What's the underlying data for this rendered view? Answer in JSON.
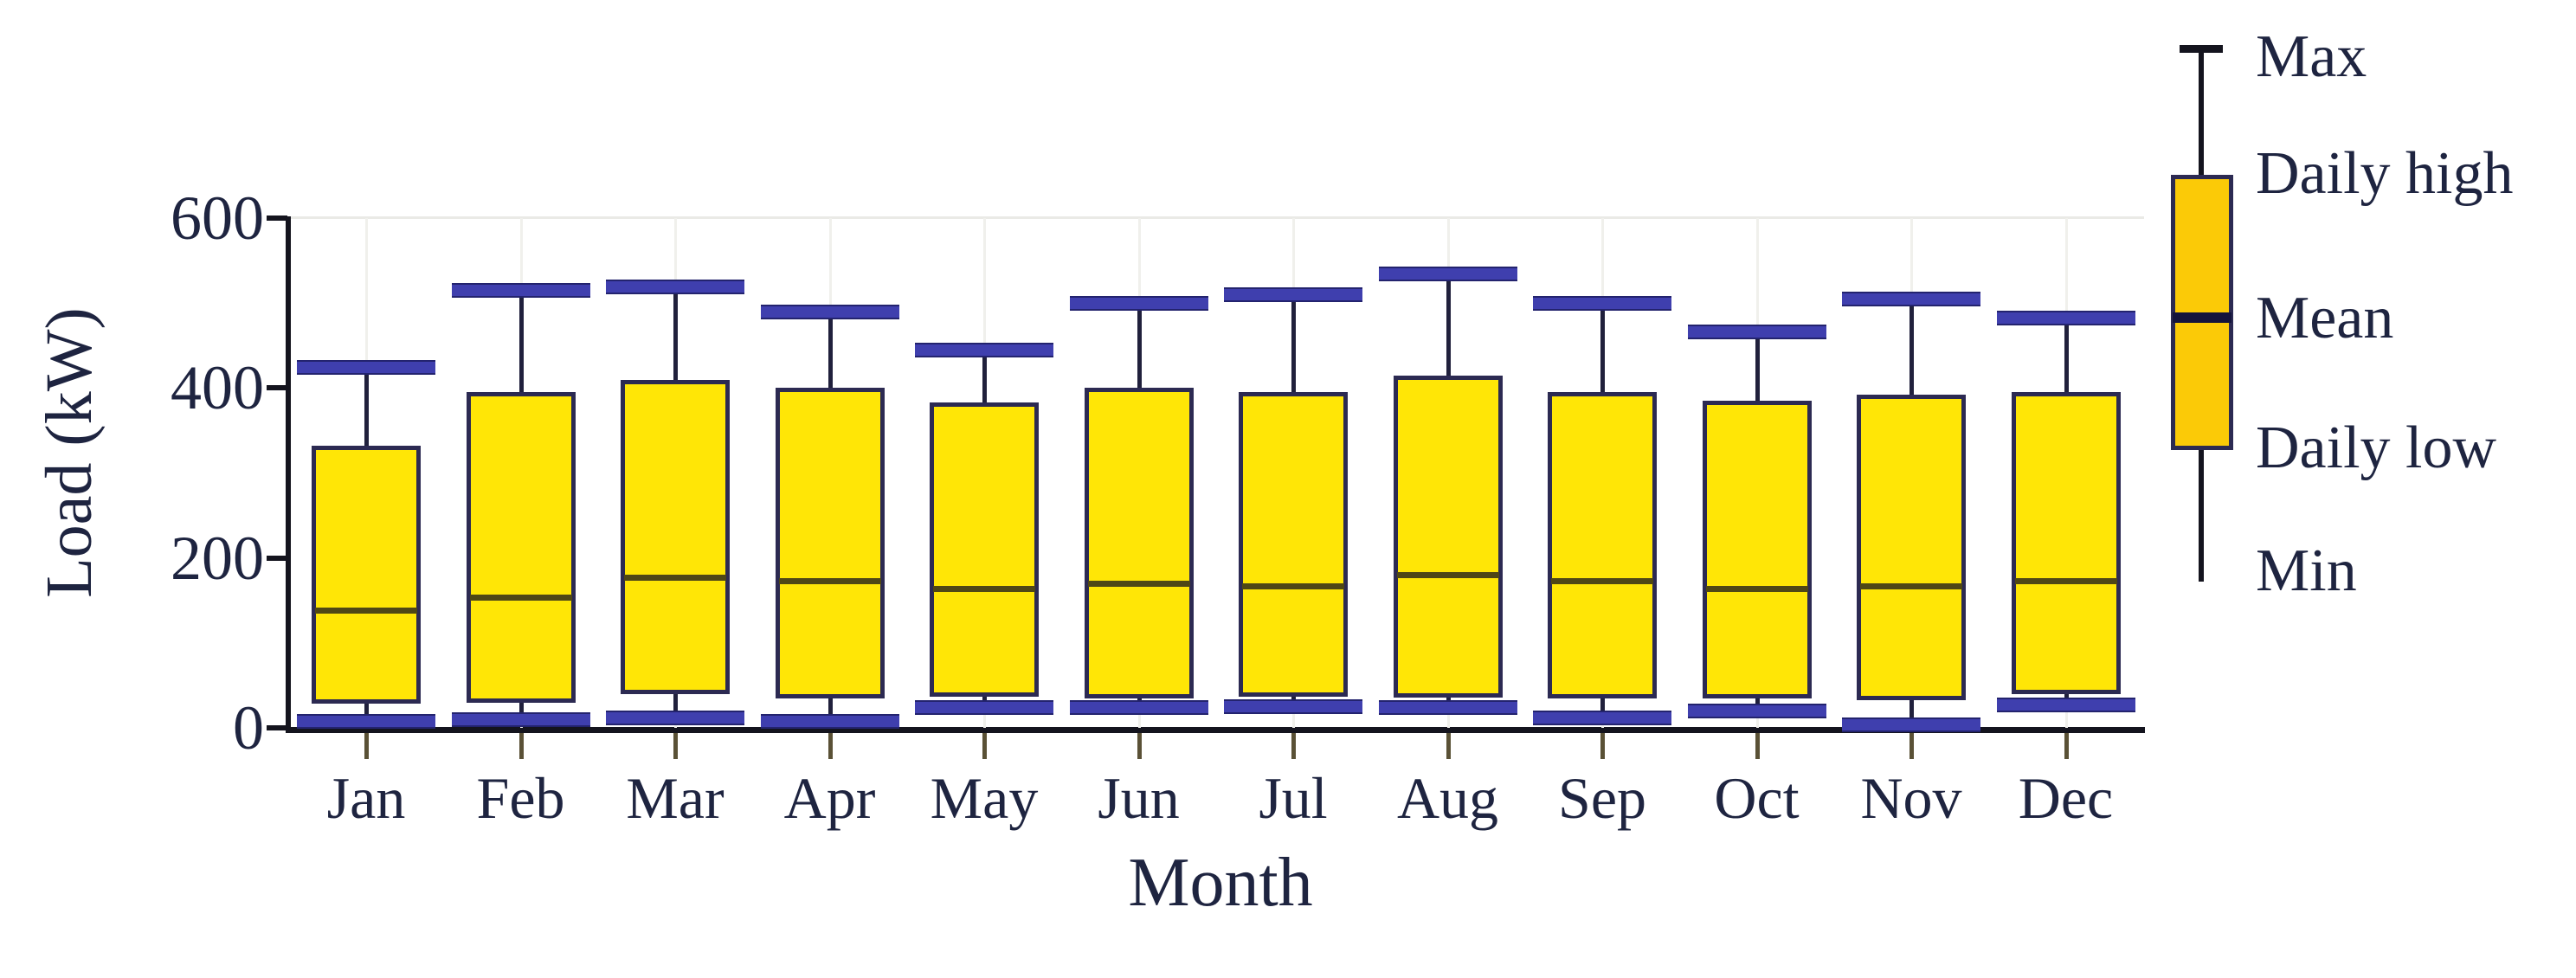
{
  "axes": {
    "y_label": "Load (kW)",
    "x_label": "Month",
    "y_ticks": [
      "0",
      "200",
      "400",
      "600"
    ],
    "y_tick_values": [
      0,
      200,
      400,
      600
    ]
  },
  "legend": {
    "items": [
      {
        "label": "Max"
      },
      {
        "label": "Daily high"
      },
      {
        "label": "Mean"
      },
      {
        "label": "Daily low"
      },
      {
        "label": "Min"
      }
    ]
  },
  "chart_data": {
    "type": "boxplot",
    "title": "",
    "xlabel": "Month",
    "ylabel": "Load (kW)",
    "ylim": [
      0,
      600
    ],
    "grid": "faint vertical gridlines per month",
    "legend_position": "right",
    "categories": [
      "Jan",
      "Feb",
      "Mar",
      "Apr",
      "May",
      "Jun",
      "Jul",
      "Aug",
      "Sep",
      "Oct",
      "Nov",
      "Dec"
    ],
    "series": [
      {
        "name": "Max",
        "values": [
          425,
          515,
          520,
          490,
          445,
          500,
          510,
          535,
          500,
          467,
          505,
          483
        ]
      },
      {
        "name": "Daily high",
        "values": [
          332,
          395,
          410,
          400,
          383,
          400,
          395,
          415,
          395,
          385,
          392,
          395
        ]
      },
      {
        "name": "Mean",
        "values": [
          139,
          154,
          177,
          173,
          164,
          170,
          167,
          180,
          173,
          164,
          167,
          173
        ]
      },
      {
        "name": "Daily low",
        "values": [
          29,
          30,
          40,
          35,
          37,
          35,
          37,
          36,
          35,
          35,
          33,
          40
        ]
      },
      {
        "name": "Min",
        "values": [
          8,
          10,
          12,
          8,
          24,
          24,
          25,
          24,
          12,
          20,
          4,
          28
        ]
      }
    ]
  },
  "colors": {
    "box_fill": "#ffe606",
    "box_border": "#2c2a52",
    "whisker_cap": "#3f3fae",
    "whisker_line": "#20203c",
    "mean_line": "#4f4716",
    "legend_box_fill": "#fbca07",
    "axis": "#14141e",
    "text": "#1e2440"
  }
}
